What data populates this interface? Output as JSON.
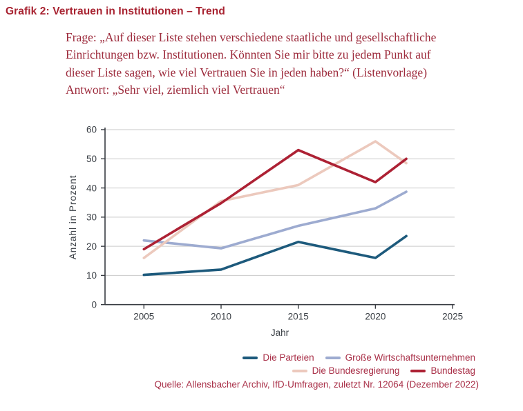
{
  "page": {
    "title": "Grafik 2: Vertrauen in Institutionen – Trend",
    "question_lines": [
      "Frage: „Auf dieser Liste stehen verschiedene staatliche und gesellschaftliche",
      "Einrichtungen bzw. Institutionen. Könnten Sie mir bitte zu jedem Punkt auf",
      "dieser Liste sagen, wie viel Vertrauen Sie in jeden haben?“ (Listenvorlage)",
      "Antwort: „Sehr viel, ziemlich viel Vertrauen“"
    ],
    "source": "Quelle: Allensbacher Archiv, IfD-Umfragen, zuletzt Nr. 12064 (Dezember 2022)"
  },
  "colors": {
    "title_red": "#a82331",
    "question_red": "#9d2b3c",
    "caption_red": "#a93048",
    "axis_text": "#3b4046",
    "axis_line": "#383c42",
    "grid": "#c9c9c9"
  },
  "chart_data": {
    "type": "line",
    "title": "",
    "xlabel": "Jahr",
    "ylabel": "Anzahl in Prozent",
    "x": [
      2005,
      2010,
      2015,
      2020,
      2022
    ],
    "x_ticks": [
      2005,
      2010,
      2015,
      2020,
      2025
    ],
    "y_ticks": [
      0,
      10,
      20,
      30,
      40,
      50,
      60
    ],
    "xlim": [
      2002.5,
      2025.2
    ],
    "ylim": [
      0,
      60
    ],
    "grid": "horizontal",
    "legend_position": "bottom-right",
    "series": [
      {
        "name": "Die Parteien",
        "color": "#1d5a7c",
        "values": [
          10.2,
          12,
          21.5,
          16,
          23.5
        ]
      },
      {
        "name": "Große Wirtschaftsunternehmen",
        "color": "#9dabd0",
        "values": [
          22,
          19.3,
          27,
          33,
          38.7
        ]
      },
      {
        "name": "Die Bundesregierung",
        "color": "#ecc9bd",
        "values": [
          16,
          35.5,
          41,
          56,
          48.5
        ]
      },
      {
        "name": "Bundestag",
        "color": "#ad2134",
        "values": [
          19,
          34.8,
          53,
          42,
          50
        ]
      }
    ]
  }
}
